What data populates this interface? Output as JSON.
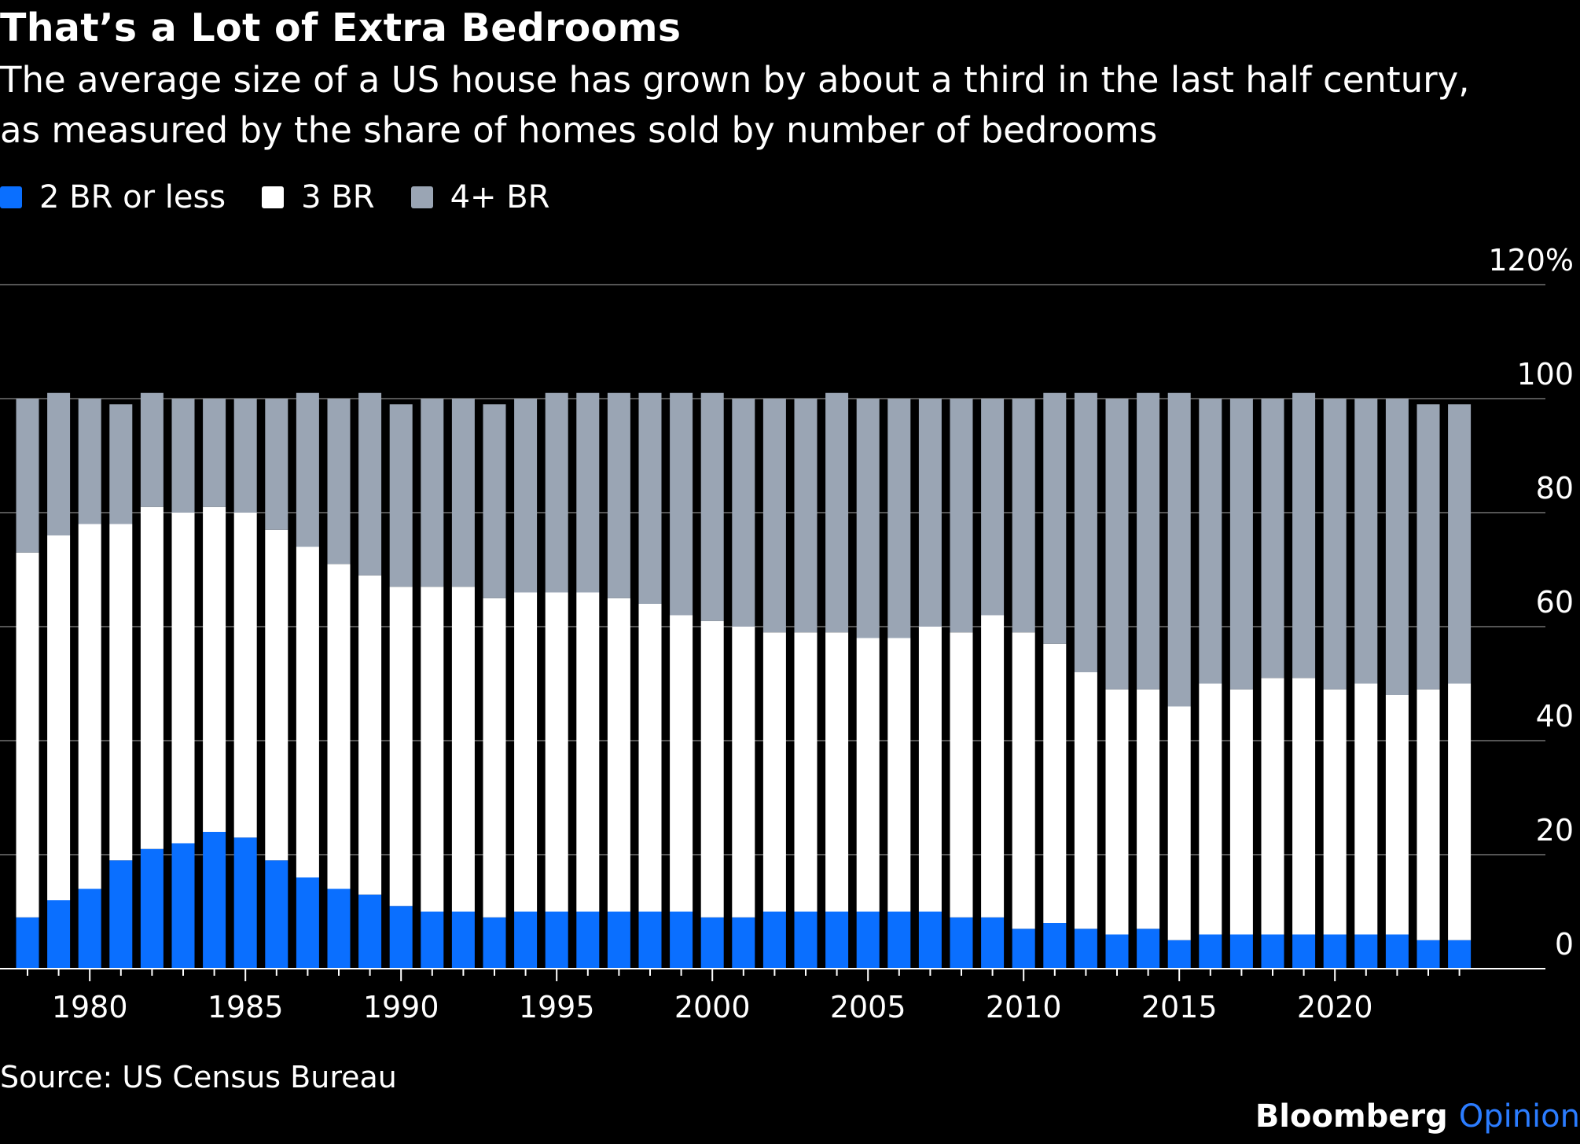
{
  "title": "That’s a Lot of Extra Bedrooms",
  "subtitle": "The average size of a US house has grown by about a third in the last half century, as measured by the share of homes sold by number of bedrooms",
  "source": "Source: US Census Bureau",
  "brand": {
    "name": "Bloomberg",
    "suffix": "Opinion"
  },
  "colors": {
    "two_br": "#0a6fff",
    "three_br": "#ffffff",
    "four_br": "#9aa5b4",
    "background": "#000000",
    "grid": "#555555"
  },
  "chart_data": {
    "type": "bar",
    "stacked": true,
    "y_tick_labels": [
      "0",
      "20",
      "40",
      "60",
      "80",
      "100",
      "120%"
    ],
    "ylim": [
      0,
      120
    ],
    "y_ticks": [
      0,
      20,
      40,
      60,
      80,
      100,
      120
    ],
    "x_tick_labels": [
      "1980",
      "1985",
      "1990",
      "1995",
      "2000",
      "2005",
      "2010",
      "2015",
      "2020"
    ],
    "legend_position": "top-left",
    "grid": true,
    "categories": [
      1978,
      1979,
      1980,
      1981,
      1982,
      1983,
      1984,
      1985,
      1986,
      1987,
      1988,
      1989,
      1990,
      1991,
      1992,
      1993,
      1994,
      1995,
      1996,
      1997,
      1998,
      1999,
      2000,
      2001,
      2002,
      2003,
      2004,
      2005,
      2006,
      2007,
      2008,
      2009,
      2010,
      2011,
      2012,
      2013,
      2014,
      2015,
      2016,
      2017,
      2018,
      2019,
      2020,
      2021,
      2022,
      2023,
      2024
    ],
    "series": [
      {
        "name": "2 BR or less",
        "values": [
          9,
          12,
          14,
          19,
          21,
          22,
          24,
          23,
          19,
          16,
          14,
          13,
          11,
          10,
          10,
          9,
          10,
          10,
          10,
          10,
          10,
          10,
          9,
          9,
          10,
          10,
          10,
          10,
          10,
          10,
          9,
          9,
          7,
          8,
          7,
          6,
          7,
          5,
          6,
          6,
          6,
          6,
          6,
          6,
          6,
          5,
          5
        ]
      },
      {
        "name": "3 BR",
        "values": [
          64,
          64,
          64,
          59,
          60,
          58,
          57,
          57,
          58,
          58,
          57,
          56,
          56,
          57,
          57,
          56,
          56,
          56,
          56,
          55,
          54,
          52,
          52,
          51,
          49,
          49,
          49,
          48,
          48,
          50,
          50,
          53,
          52,
          49,
          45,
          43,
          42,
          41,
          44,
          43,
          45,
          45,
          43,
          44,
          42,
          44,
          45
        ]
      },
      {
        "name": "4+ BR",
        "values": [
          27,
          25,
          22,
          21,
          20,
          20,
          19,
          20,
          23,
          27,
          29,
          32,
          32,
          33,
          33,
          34,
          34,
          35,
          35,
          36,
          37,
          39,
          40,
          40,
          41,
          41,
          42,
          42,
          42,
          40,
          41,
          38,
          41,
          44,
          49,
          51,
          52,
          55,
          50,
          51,
          49,
          50,
          51,
          50,
          52,
          50,
          49
        ]
      }
    ]
  }
}
